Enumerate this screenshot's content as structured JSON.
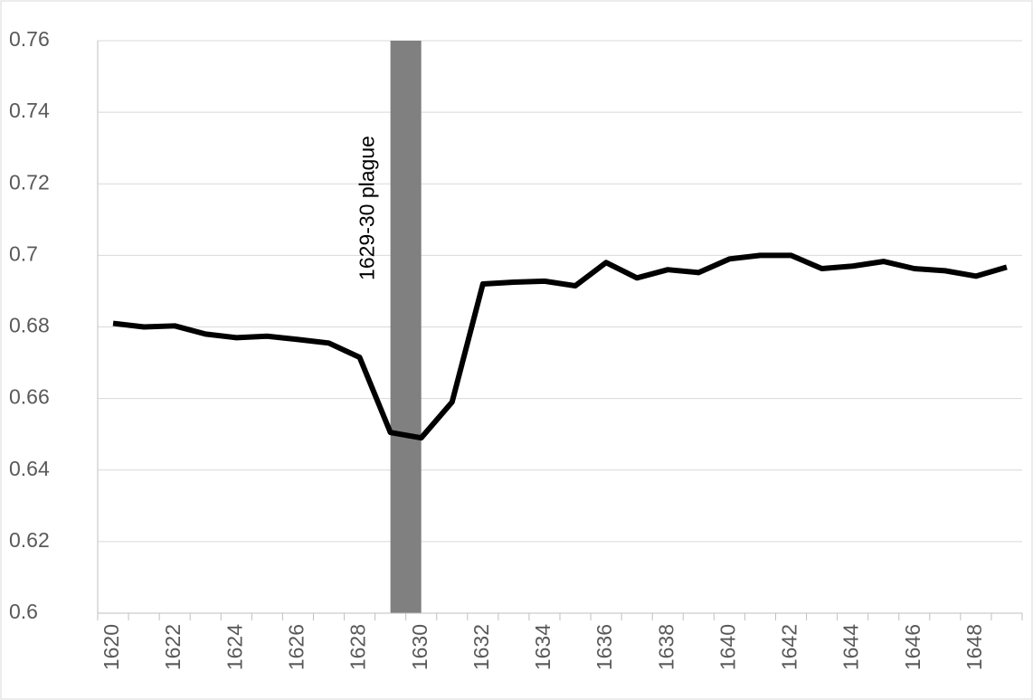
{
  "chart_data": {
    "type": "line",
    "categories": [
      1620,
      null,
      1622,
      null,
      1624,
      null,
      1626,
      null,
      1628,
      null,
      1630,
      null,
      1632,
      null,
      1634,
      null,
      1636,
      null,
      1638,
      null,
      1640,
      null,
      1642,
      null,
      1644,
      null,
      1646,
      null,
      1648,
      null
    ],
    "series": [
      {
        "color": "#000000",
        "values": [
          0.681,
          0.68,
          0.6803,
          0.678,
          0.677,
          0.6774,
          0.6765,
          0.6755,
          0.6715,
          0.6505,
          0.649,
          0.659,
          0.692,
          0.6925,
          0.6928,
          0.6915,
          0.698,
          0.6937,
          0.696,
          0.6952,
          0.699,
          0.7,
          0.7,
          0.6963,
          0.697,
          0.6983,
          0.6963,
          0.6957,
          0.6942,
          0.6967
        ]
      }
    ],
    "ylim": [
      0.6,
      0.76
    ],
    "yticks": [
      0.6,
      0.62,
      0.64,
      0.66,
      0.68,
      0.7,
      0.72,
      0.74,
      0.76
    ],
    "grid": true,
    "highlight": {
      "label": "1629-30 plague",
      "from": 1629,
      "to": 1630,
      "color": "#808080"
    }
  }
}
